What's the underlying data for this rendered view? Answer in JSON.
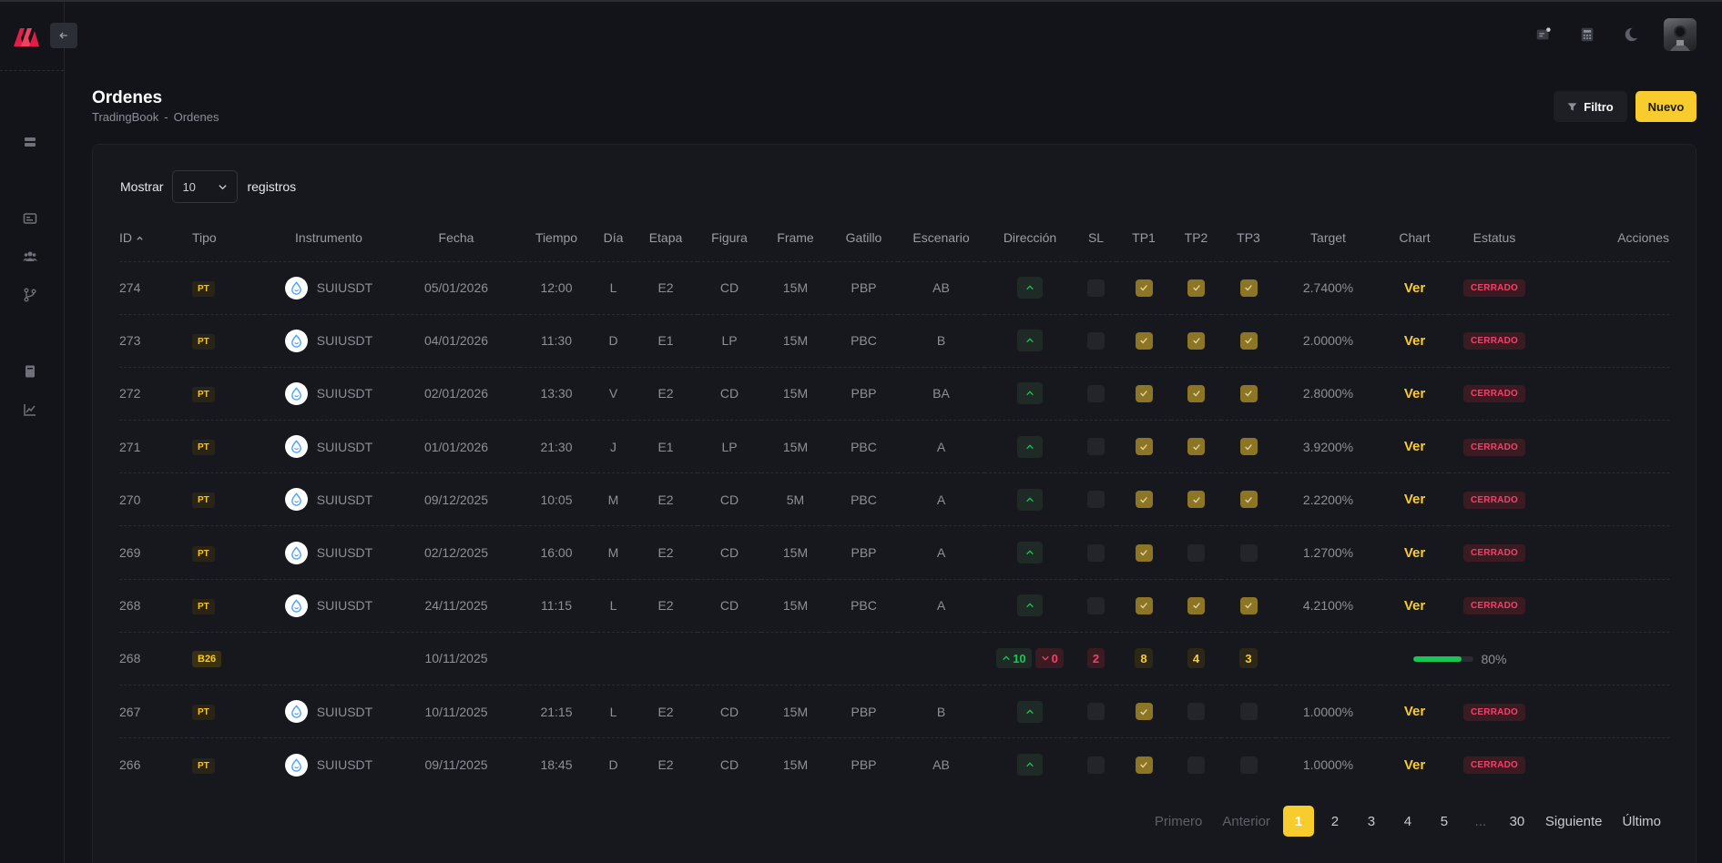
{
  "sidebar": {
    "items": [
      {
        "icon": "server-icon"
      },
      {
        "icon": "id-card-icon"
      },
      {
        "icon": "users-icon"
      },
      {
        "icon": "branch-icon"
      },
      {
        "icon": "book-icon"
      },
      {
        "icon": "chart-icon"
      }
    ]
  },
  "header": {
    "icons": [
      "notes-icon",
      "calculator-icon",
      "moon-icon"
    ]
  },
  "page": {
    "title": "Ordenes",
    "breadcrumb": [
      "TradingBook",
      "-",
      "Ordenes"
    ]
  },
  "toolbar": {
    "filter_label": "Filtro",
    "new_label": "Nuevo"
  },
  "show": {
    "prefix": "Mostrar",
    "value": "10",
    "suffix": "registros"
  },
  "table": {
    "columns": [
      "ID",
      "Tipo",
      "Instrumento",
      "Fecha",
      "Tiempo",
      "Día",
      "Etapa",
      "Figura",
      "Frame",
      "Gatillo",
      "Escenario",
      "Dirección",
      "SL",
      "TP1",
      "TP2",
      "TP3",
      "Target",
      "Chart",
      "Estatus",
      "Acciones"
    ],
    "rows": [
      {
        "id": "274",
        "tipo": "PT",
        "instrumento": "SUIUSDT",
        "fecha": "05/01/2026",
        "tiempo": "12:00",
        "dia": "L",
        "etapa": "E2",
        "figura": "CD",
        "frame": "15M",
        "gatillo": "PBP",
        "escenario": "AB",
        "direccion": "up",
        "sl": false,
        "tp1": true,
        "tp2": true,
        "tp3": true,
        "target": "2.7400%",
        "chart": "Ver",
        "estatus": "CERRADO"
      },
      {
        "id": "273",
        "tipo": "PT",
        "instrumento": "SUIUSDT",
        "fecha": "04/01/2026",
        "tiempo": "11:30",
        "dia": "D",
        "etapa": "E1",
        "figura": "LP",
        "frame": "15M",
        "gatillo": "PBC",
        "escenario": "B",
        "direccion": "up",
        "sl": false,
        "tp1": true,
        "tp2": true,
        "tp3": true,
        "target": "2.0000%",
        "chart": "Ver",
        "estatus": "CERRADO"
      },
      {
        "id": "272",
        "tipo": "PT",
        "instrumento": "SUIUSDT",
        "fecha": "02/01/2026",
        "tiempo": "13:30",
        "dia": "V",
        "etapa": "E2",
        "figura": "CD",
        "frame": "15M",
        "gatillo": "PBP",
        "escenario": "BA",
        "direccion": "up",
        "sl": false,
        "tp1": true,
        "tp2": true,
        "tp3": true,
        "target": "2.8000%",
        "chart": "Ver",
        "estatus": "CERRADO"
      },
      {
        "id": "271",
        "tipo": "PT",
        "instrumento": "SUIUSDT",
        "fecha": "01/01/2026",
        "tiempo": "21:30",
        "dia": "J",
        "etapa": "E1",
        "figura": "LP",
        "frame": "15M",
        "gatillo": "PBC",
        "escenario": "A",
        "direccion": "up",
        "sl": false,
        "tp1": true,
        "tp2": true,
        "tp3": true,
        "target": "3.9200%",
        "chart": "Ver",
        "estatus": "CERRADO"
      },
      {
        "id": "270",
        "tipo": "PT",
        "instrumento": "SUIUSDT",
        "fecha": "09/12/2025",
        "tiempo": "10:05",
        "dia": "M",
        "etapa": "E2",
        "figura": "CD",
        "frame": "5M",
        "gatillo": "PBC",
        "escenario": "A",
        "direccion": "up",
        "sl": false,
        "tp1": true,
        "tp2": true,
        "tp3": true,
        "target": "2.2200%",
        "chart": "Ver",
        "estatus": "CERRADO"
      },
      {
        "id": "269",
        "tipo": "PT",
        "instrumento": "SUIUSDT",
        "fecha": "02/12/2025",
        "tiempo": "16:00",
        "dia": "M",
        "etapa": "E2",
        "figura": "CD",
        "frame": "15M",
        "gatillo": "PBP",
        "escenario": "A",
        "direccion": "up",
        "sl": false,
        "tp1": true,
        "tp2": false,
        "tp3": false,
        "target": "1.2700%",
        "chart": "Ver",
        "estatus": "CERRADO"
      },
      {
        "id": "268",
        "tipo": "PT",
        "instrumento": "SUIUSDT",
        "fecha": "24/11/2025",
        "tiempo": "11:15",
        "dia": "L",
        "etapa": "E2",
        "figura": "CD",
        "frame": "15M",
        "gatillo": "PBC",
        "escenario": "A",
        "direccion": "up",
        "sl": false,
        "tp1": true,
        "tp2": true,
        "tp3": true,
        "target": "4.2100%",
        "chart": "Ver",
        "estatus": "CERRADO"
      },
      {
        "id": "268",
        "tipo": "B26",
        "summary": true,
        "fecha": "10/11/2025",
        "up_count": "10",
        "down_count": "0",
        "sl_count": "2",
        "tp1_count": "8",
        "tp2_count": "4",
        "tp3_count": "3",
        "progress_pct": 80,
        "progress_label": "80%"
      },
      {
        "id": "267",
        "tipo": "PT",
        "instrumento": "SUIUSDT",
        "fecha": "10/11/2025",
        "tiempo": "21:15",
        "dia": "L",
        "etapa": "E2",
        "figura": "CD",
        "frame": "15M",
        "gatillo": "PBP",
        "escenario": "B",
        "direccion": "up",
        "sl": false,
        "tp1": true,
        "tp2": false,
        "tp3": false,
        "target": "1.0000%",
        "chart": "Ver",
        "estatus": "CERRADO"
      },
      {
        "id": "266",
        "tipo": "PT",
        "instrumento": "SUIUSDT",
        "fecha": "09/11/2025",
        "tiempo": "18:45",
        "dia": "D",
        "etapa": "E2",
        "figura": "CD",
        "frame": "15M",
        "gatillo": "PBP",
        "escenario": "AB",
        "direccion": "up",
        "sl": false,
        "tp1": true,
        "tp2": false,
        "tp3": false,
        "target": "1.0000%",
        "chart": "Ver",
        "estatus": "CERRADO"
      }
    ]
  },
  "pagination": {
    "first": "Primero",
    "prev": "Anterior",
    "pages": [
      "1",
      "2",
      "3",
      "4",
      "5",
      "...",
      "30"
    ],
    "active": "1",
    "next": "Siguiente",
    "last": "Último"
  },
  "colors": {
    "accent": "#f9cc2e",
    "success": "#17c653",
    "danger": "#f1416c",
    "brand": "#f1416c"
  }
}
